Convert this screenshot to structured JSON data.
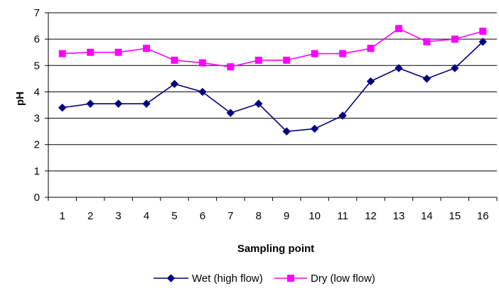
{
  "chart_data": {
    "type": "line",
    "title": "",
    "xlabel": "Sampling point",
    "ylabel": "pH",
    "categories": [
      "1",
      "2",
      "3",
      "4",
      "5",
      "6",
      "7",
      "8",
      "9",
      "10",
      "11",
      "12",
      "13",
      "14",
      "15",
      "16"
    ],
    "ylim": [
      0,
      7
    ],
    "yticks": [
      "0",
      "1",
      "2",
      "3",
      "4",
      "5",
      "6",
      "7"
    ],
    "grid": true,
    "legend_position": "bottom",
    "series": [
      {
        "name": "Wet (high flow)",
        "color": "#000080",
        "marker": "diamond",
        "values": [
          3.4,
          3.55,
          3.55,
          3.55,
          4.3,
          4.0,
          3.2,
          3.55,
          2.5,
          2.6,
          3.1,
          4.4,
          4.9,
          4.5,
          4.9,
          5.9
        ]
      },
      {
        "name": "Dry (low flow)",
        "color": "#ff00ff",
        "marker": "square",
        "values": [
          5.45,
          5.5,
          5.5,
          5.65,
          5.2,
          5.1,
          4.95,
          5.2,
          5.2,
          5.45,
          5.45,
          5.65,
          6.4,
          5.9,
          6.0,
          6.3
        ]
      }
    ]
  }
}
